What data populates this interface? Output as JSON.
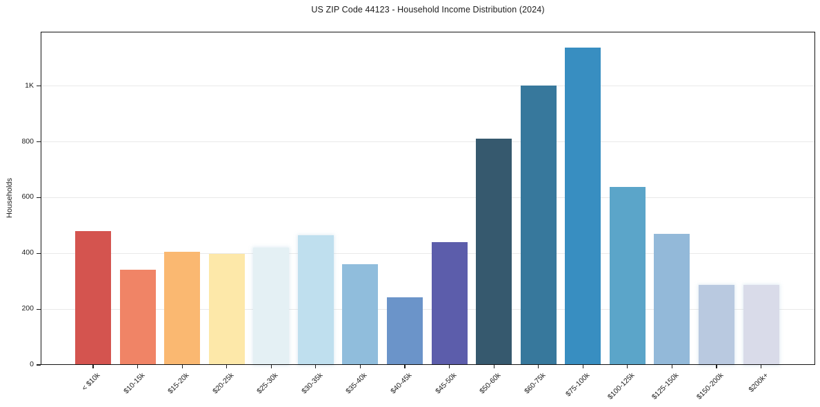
{
  "chart_data": {
    "type": "bar",
    "title": "US ZIP Code 44123 - Household Income Distribution (2024)",
    "xlabel": "",
    "ylabel": "Households",
    "ylim": [
      0,
      1195
    ],
    "grid": "horizontal",
    "legend": "none",
    "background": "#ffffff",
    "yticks": {
      "values": [
        0,
        200,
        400,
        600,
        800,
        1000
      ],
      "labels": [
        "0",
        "200",
        "400",
        "600",
        "800",
        "1K"
      ]
    },
    "categories": [
      "< $10k",
      "$10-15k",
      "$15-20k",
      "$20-25k",
      "$25-30k",
      "$30-35k",
      "$35-40k",
      "$40-45k",
      "$45-50k",
      "$50-60k",
      "$60-75k",
      "$75-100k",
      "$100-125k",
      "$125-150k",
      "$150-200k",
      "$200k+"
    ],
    "values": [
      480,
      341,
      406,
      399,
      421,
      464,
      362,
      242,
      441,
      812,
      1002,
      1138,
      638,
      471,
      286,
      287
    ],
    "bar_colors": [
      "#d4544f",
      "#f08466",
      "#fab871",
      "#fde8a9",
      "#e4f0f4",
      "#bfdfee",
      "#90bddc",
      "#6b94c9",
      "#5c5dab",
      "#36596e",
      "#37789c",
      "#388ec1",
      "#5ba5c9",
      "#93b9d9",
      "#b9c9e0",
      "#d9dbe9"
    ],
    "soft_edge_bars": [
      4,
      5,
      14,
      15
    ]
  }
}
